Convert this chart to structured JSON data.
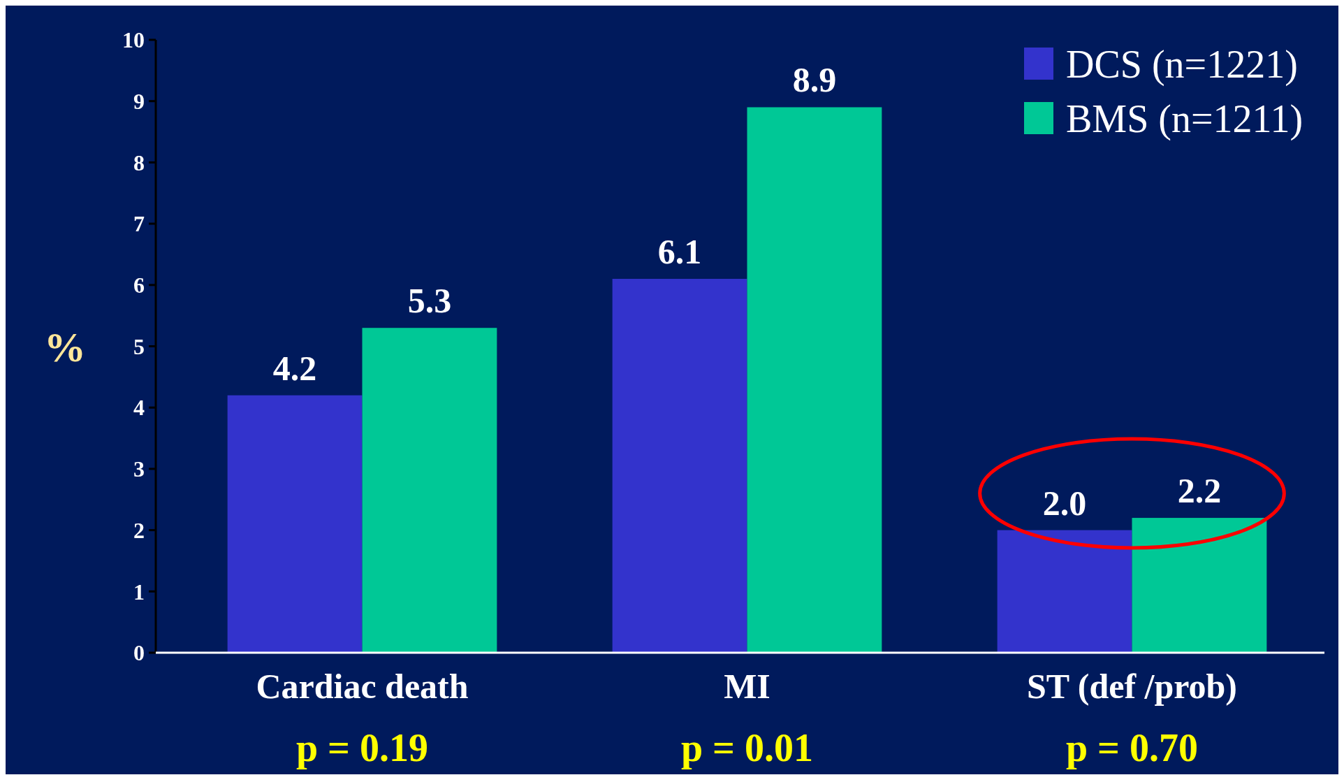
{
  "chart_data": {
    "type": "bar",
    "ylabel": "%",
    "categories": [
      "Cardiac death",
      "MI",
      "ST (def /prob)"
    ],
    "series": [
      {
        "name": "DCS (n=1221)",
        "color": "#3333cc",
        "values": [
          4.2,
          6.1,
          2.0
        ],
        "value_labels": [
          "4.2",
          "6.1",
          "2.0"
        ]
      },
      {
        "name": "BMS (n=1211)",
        "color": "#00c896",
        "values": [
          5.3,
          8.9,
          2.2
        ],
        "value_labels": [
          "5.3",
          "8.9",
          "2.2"
        ]
      }
    ],
    "ylim": [
      0,
      10
    ],
    "yticks": [
      0,
      1,
      2,
      3,
      4,
      5,
      6,
      7,
      8,
      9,
      10
    ],
    "grid": false,
    "legend": "top right",
    "annotations": [
      "p = 0.19",
      "p = 0.01",
      "p = 0.70"
    ]
  }
}
